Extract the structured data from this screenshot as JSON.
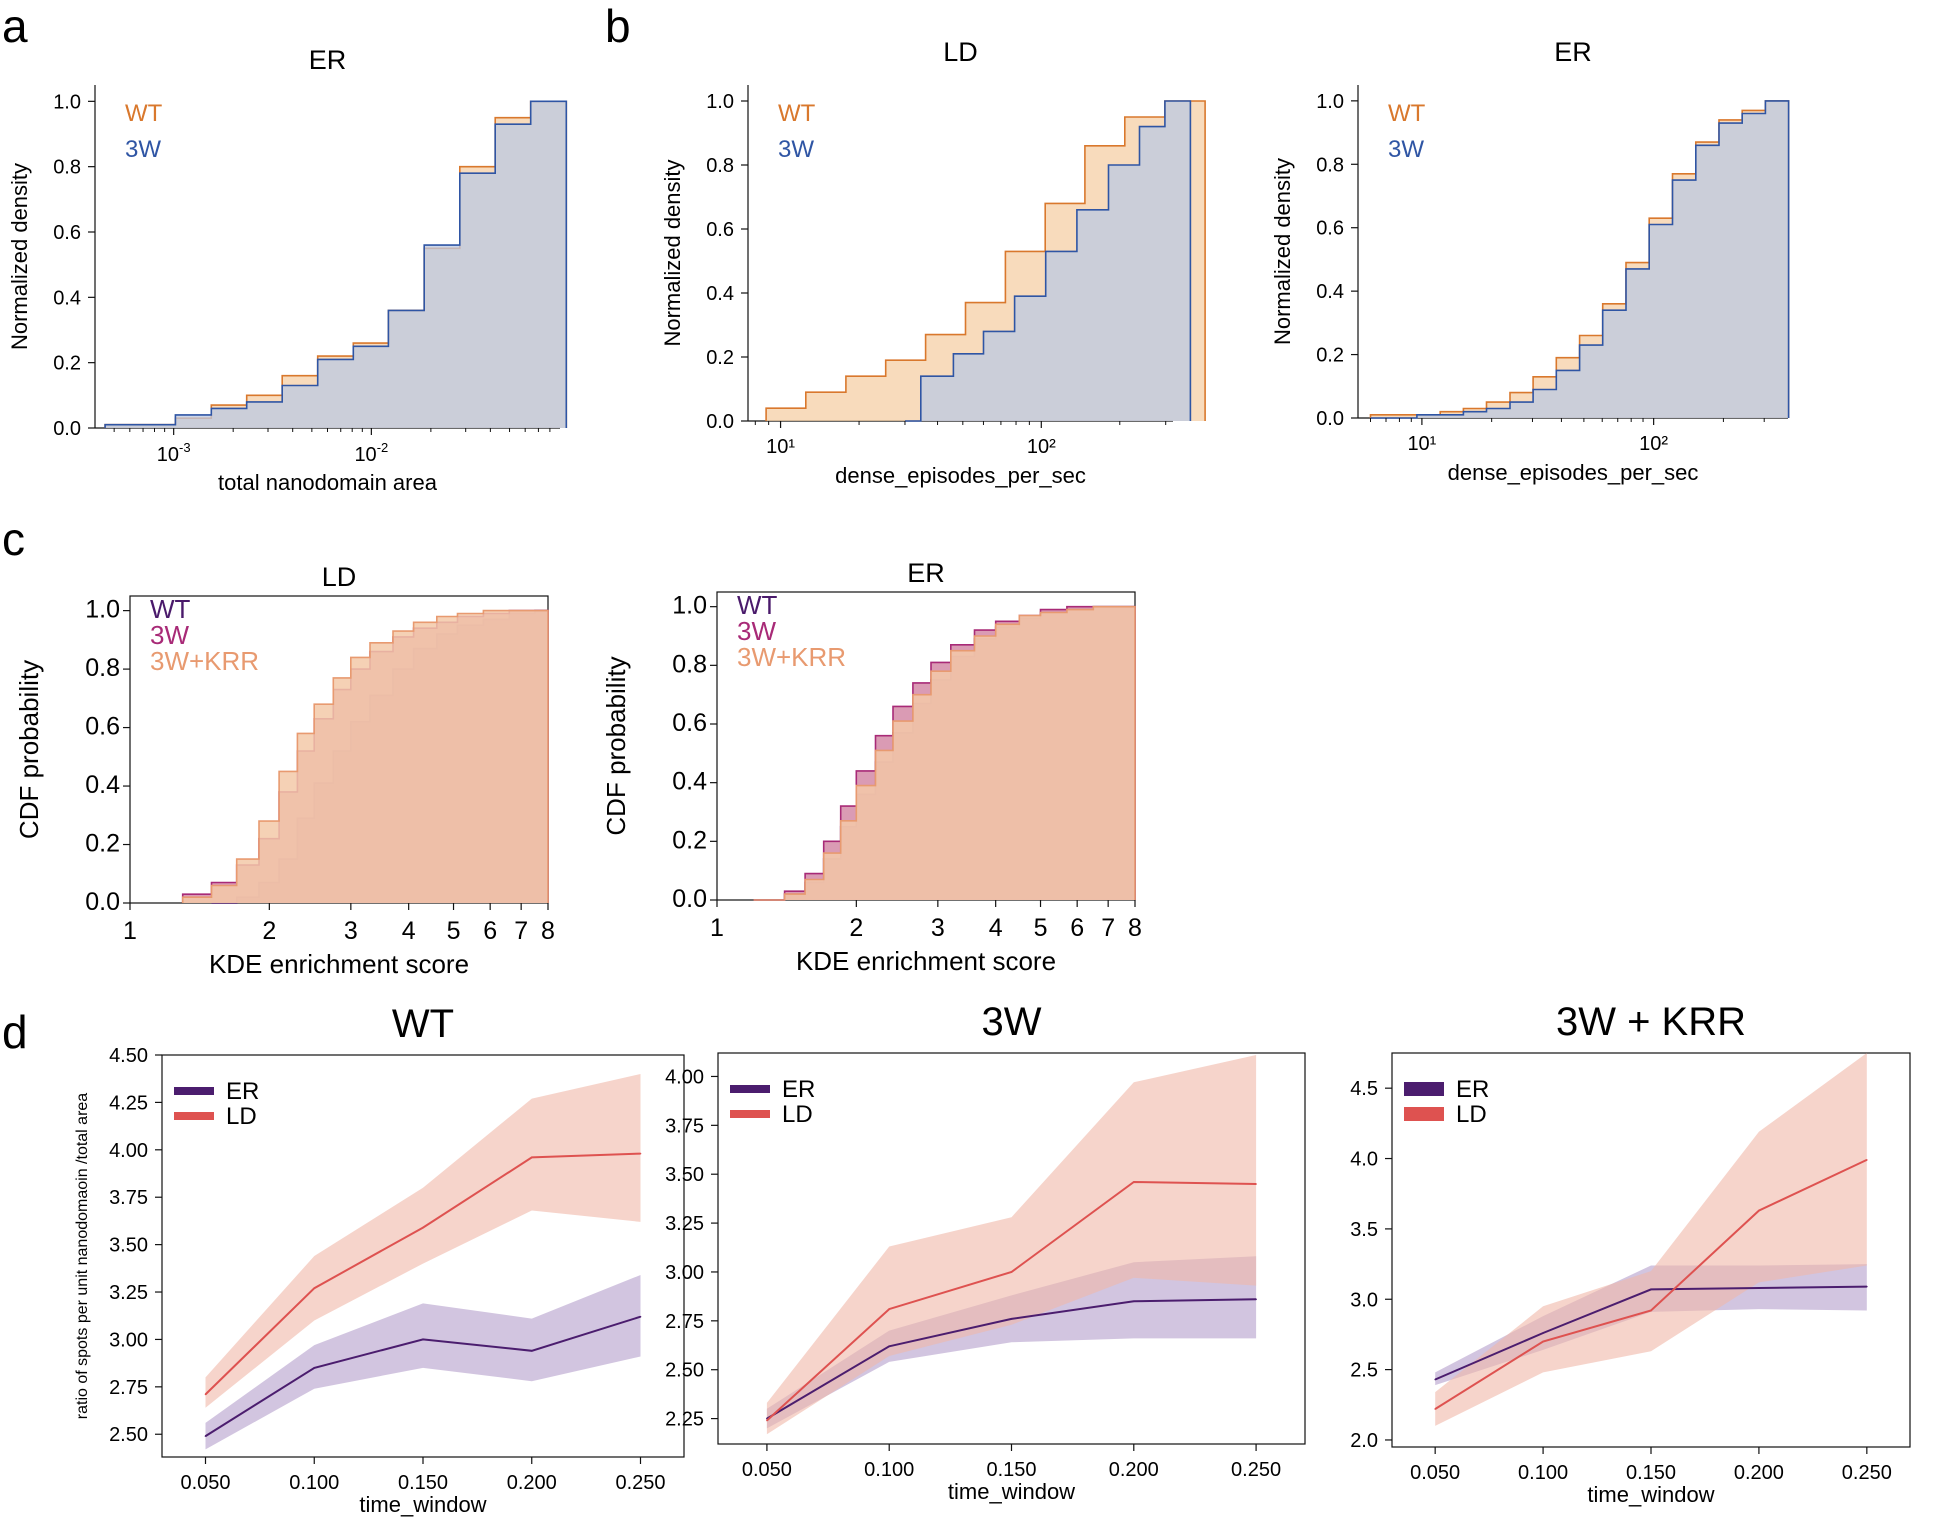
{
  "panel_letters": [
    "a",
    "b",
    "c",
    "d"
  ],
  "chart_data": [
    {
      "panel": "a",
      "type": "area",
      "title": "ER",
      "xlabel": "total nanodomain area",
      "ylabel": "Normalized density",
      "xscale": "log",
      "xlim": [
        0.0004,
        0.09
      ],
      "ylim": [
        0,
        1.05
      ],
      "xticks": [
        0.001,
        0.01
      ],
      "xticklabels": [
        "10-3",
        "10-2"
      ],
      "yticks": [
        "0.0",
        "0.2",
        "0.4",
        "0.6",
        "0.8",
        "1.0"
      ],
      "legend": "top-left",
      "grid": false,
      "series": [
        {
          "name": "WT",
          "color": "#d9782d",
          "fill": "#f5cfa6",
          "x": [
            0.00045,
            0.00068,
            0.00102,
            0.00155,
            0.00234,
            0.00354,
            0.00535,
            0.0081,
            0.0122,
            0.0185,
            0.028,
            0.0423,
            0.064
          ],
          "values": [
            0.01,
            0.01,
            0.03,
            0.07,
            0.1,
            0.16,
            0.22,
            0.26,
            0.36,
            0.55,
            0.8,
            0.95,
            1.0
          ]
        },
        {
          "name": "3W",
          "color": "#2f55a4",
          "fill": "#bcc9e3",
          "x": [
            0.00045,
            0.00068,
            0.00102,
            0.00155,
            0.00234,
            0.00354,
            0.00535,
            0.0081,
            0.0122,
            0.0185,
            0.028,
            0.0423,
            0.064
          ],
          "values": [
            0.01,
            0.01,
            0.04,
            0.06,
            0.08,
            0.13,
            0.21,
            0.25,
            0.36,
            0.56,
            0.78,
            0.93,
            1.0
          ]
        }
      ]
    },
    {
      "panel": "b-left",
      "type": "area",
      "title": "LD",
      "xlabel": "dense_episodes_per_sec",
      "ylabel": "Normalized density",
      "xscale": "log",
      "xlim": [
        7.5,
        320
      ],
      "ylim": [
        0,
        1.05
      ],
      "xticks": [
        10,
        100
      ],
      "xticklabels": [
        "10¹",
        "10²"
      ],
      "yticks": [
        "0.0",
        "0.2",
        "0.4",
        "0.6",
        "0.8",
        "1.0"
      ],
      "legend": "top-left",
      "grid": false,
      "series": [
        {
          "name": "WT",
          "color": "#d9782d",
          "fill": "#f5cfa6",
          "x": [
            8.8,
            12.5,
            17.8,
            25.3,
            36.0,
            51.2,
            72.8,
            103.5,
            147,
            209,
            298
          ],
          "values": [
            0.04,
            0.09,
            0.14,
            0.19,
            0.27,
            0.37,
            0.53,
            0.68,
            0.86,
            0.95,
            1.0
          ]
        },
        {
          "name": "3W",
          "color": "#2f55a4",
          "fill": "#bcc9e3",
          "x": [
            30.0,
            34.5,
            46.0,
            60.0,
            79.0,
            104,
            137,
            181,
            238,
            298
          ],
          "values": [
            0.0,
            0.14,
            0.21,
            0.28,
            0.39,
            0.53,
            0.66,
            0.8,
            0.92,
            1.0
          ]
        }
      ]
    },
    {
      "panel": "b-right",
      "type": "area",
      "title": "ER",
      "xlabel": "dense_episodes_per_sec",
      "ylabel": "Normalized density",
      "xscale": "log",
      "xlim": [
        5.3,
        380
      ],
      "ylim": [
        0,
        1.05
      ],
      "xticks": [
        10,
        100
      ],
      "xticklabels": [
        "10¹",
        "10²"
      ],
      "yticks": [
        "0.0",
        "0.2",
        "0.4",
        "0.6",
        "0.8",
        "1.0"
      ],
      "legend": "top-left",
      "grid": false,
      "series": [
        {
          "name": "WT",
          "color": "#d9782d",
          "fill": "#f5cfa6",
          "x": [
            6.0,
            7.56,
            9.52,
            12.0,
            15.1,
            19.0,
            24.0,
            30.2,
            38.0,
            47.9,
            60.3,
            76.0,
            95.7,
            120.6,
            152,
            191.4,
            241,
            303.6
          ],
          "values": [
            0.01,
            0.01,
            0.01,
            0.02,
            0.03,
            0.05,
            0.08,
            0.13,
            0.19,
            0.26,
            0.36,
            0.49,
            0.63,
            0.77,
            0.87,
            0.94,
            0.97,
            1.0
          ]
        },
        {
          "name": "3W",
          "color": "#2f55a4",
          "fill": "#bcc9e3",
          "x": [
            6.0,
            7.56,
            9.52,
            12.0,
            15.1,
            19.0,
            24.0,
            30.2,
            38.0,
            47.9,
            60.3,
            76.0,
            95.7,
            120.6,
            152,
            191.4,
            241,
            303.6
          ],
          "values": [
            0.0,
            0.0,
            0.01,
            0.01,
            0.02,
            0.03,
            0.05,
            0.09,
            0.15,
            0.23,
            0.34,
            0.47,
            0.61,
            0.75,
            0.86,
            0.93,
            0.96,
            1.0
          ]
        }
      ]
    },
    {
      "panel": "c-left",
      "type": "area",
      "title": "LD",
      "xlabel": "KDE enrichment score",
      "ylabel": "CDF probability",
      "xscale": "log",
      "xlim": [
        1,
        8
      ],
      "ylim": [
        0,
        1.05
      ],
      "xticks": [
        1,
        2,
        3,
        4,
        5,
        6,
        7,
        8
      ],
      "xticklabels": [
        "1",
        "2",
        "3",
        "4",
        "5",
        "6",
        "7",
        "8"
      ],
      "yticks": [
        "0.0",
        "0.2",
        "0.4",
        "0.6",
        "0.8",
        "1.0"
      ],
      "legend": "top-left",
      "grid": false,
      "series": [
        {
          "name": "WT",
          "color": "#4a1a6b",
          "fill": "#9c6d93",
          "x": [
            1.5,
            1.7,
            1.9,
            2.1,
            2.3,
            2.5,
            2.75,
            3.0,
            3.3,
            3.7,
            4.1,
            4.6,
            5.1,
            5.8,
            6.6,
            7.5
          ],
          "values": [
            0.0,
            0.02,
            0.07,
            0.15,
            0.29,
            0.41,
            0.52,
            0.62,
            0.71,
            0.8,
            0.87,
            0.92,
            0.95,
            0.97,
            0.99,
            1.0
          ]
        },
        {
          "name": "3W",
          "color": "#a82a77",
          "fill": "#d48aa7",
          "x": [
            1.3,
            1.5,
            1.7,
            1.9,
            2.1,
            2.3,
            2.5,
            2.75,
            3.0,
            3.3,
            3.7,
            4.1,
            4.6,
            5.1,
            5.8,
            6.6,
            7.5
          ],
          "values": [
            0.03,
            0.07,
            0.13,
            0.22,
            0.38,
            0.52,
            0.63,
            0.73,
            0.8,
            0.86,
            0.91,
            0.94,
            0.96,
            0.98,
            0.99,
            1.0,
            1.0
          ]
        },
        {
          "name": "3W+KRR",
          "color": "#e89a70",
          "fill": "#f3c9a8",
          "x": [
            1.3,
            1.5,
            1.7,
            1.9,
            2.1,
            2.3,
            2.5,
            2.75,
            3.0,
            3.3,
            3.7,
            4.1,
            4.6,
            5.1,
            5.8,
            6.6,
            7.5
          ],
          "values": [
            0.02,
            0.06,
            0.15,
            0.28,
            0.45,
            0.58,
            0.68,
            0.77,
            0.84,
            0.89,
            0.93,
            0.96,
            0.98,
            0.99,
            1.0,
            1.0,
            1.0
          ]
        }
      ]
    },
    {
      "panel": "c-right",
      "type": "area",
      "title": "ER",
      "xlabel": "KDE enrichment score",
      "ylabel": "CDF probability",
      "xscale": "log",
      "xlim": [
        1,
        8
      ],
      "ylim": [
        0,
        1.05
      ],
      "xticks": [
        1,
        2,
        3,
        4,
        5,
        6,
        7,
        8
      ],
      "xticklabels": [
        "1",
        "2",
        "3",
        "4",
        "5",
        "6",
        "7",
        "8"
      ],
      "yticks": [
        "0.0",
        "0.2",
        "0.4",
        "0.6",
        "0.8",
        "1.0"
      ],
      "legend": "top-left",
      "grid": false,
      "series": [
        {
          "name": "WT",
          "color": "#4a1a6b",
          "fill": "#9c6d93",
          "x": [
            1.2,
            1.4,
            1.55,
            1.7,
            1.85,
            2.0,
            2.2,
            2.4,
            2.65,
            2.9,
            3.2,
            3.6,
            4.0,
            4.5,
            5.0,
            5.7,
            6.5,
            7.4
          ],
          "values": [
            0.0,
            0.02,
            0.06,
            0.14,
            0.25,
            0.36,
            0.47,
            0.57,
            0.67,
            0.75,
            0.83,
            0.89,
            0.93,
            0.96,
            0.98,
            0.99,
            1.0,
            1.0
          ]
        },
        {
          "name": "3W",
          "color": "#a82a77",
          "fill": "#d48aa7",
          "x": [
            1.2,
            1.4,
            1.55,
            1.7,
            1.85,
            2.0,
            2.2,
            2.4,
            2.65,
            2.9,
            3.2,
            3.6,
            4.0,
            4.5,
            5.0,
            5.7,
            6.5,
            7.4
          ],
          "values": [
            0.0,
            0.03,
            0.09,
            0.2,
            0.32,
            0.44,
            0.56,
            0.66,
            0.74,
            0.81,
            0.87,
            0.92,
            0.95,
            0.97,
            0.99,
            1.0,
            1.0,
            1.0
          ]
        },
        {
          "name": "3W+KRR",
          "color": "#e89a70",
          "fill": "#f3c9a8",
          "x": [
            1.2,
            1.4,
            1.55,
            1.7,
            1.85,
            2.0,
            2.2,
            2.4,
            2.65,
            2.9,
            3.2,
            3.6,
            4.0,
            4.5,
            5.0,
            5.7,
            6.5,
            7.4
          ],
          "values": [
            0.0,
            0.02,
            0.07,
            0.16,
            0.27,
            0.39,
            0.51,
            0.61,
            0.7,
            0.78,
            0.85,
            0.9,
            0.94,
            0.97,
            0.98,
            0.99,
            1.0,
            1.0
          ]
        }
      ]
    },
    {
      "panel": "d-left",
      "type": "line",
      "title": "WT",
      "xlabel": "time_window",
      "ylabel": "ratio of spots per unit nanodomaoin /total area",
      "xlim": [
        0.03,
        0.27
      ],
      "ylim": [
        2.38,
        4.5
      ],
      "xticks": [
        0.05,
        0.1,
        0.15,
        0.2,
        0.25
      ],
      "xticklabels": [
        "0.050",
        "0.100",
        "0.150",
        "0.200",
        "0.250"
      ],
      "yticks": [
        2.5,
        2.75,
        3.0,
        3.25,
        3.5,
        3.75,
        4.0,
        4.25,
        4.5
      ],
      "yticklabels": [
        "2.50",
        "2.75",
        "3.00",
        "3.25",
        "3.50",
        "3.75",
        "4.00",
        "4.25",
        "4.50"
      ],
      "legend": "top-left",
      "grid": false,
      "x": [
        0.05,
        0.1,
        0.15,
        0.2,
        0.25
      ],
      "series": [
        {
          "name": "ER",
          "color": "#4b1d6e",
          "fill": "#b49fcc",
          "values": [
            2.49,
            2.85,
            3.0,
            2.94,
            3.12
          ],
          "lower": [
            2.42,
            2.74,
            2.85,
            2.78,
            2.91
          ],
          "upper": [
            2.56,
            2.97,
            3.19,
            3.11,
            3.34
          ]
        },
        {
          "name": "LD",
          "color": "#de5250",
          "fill": "#f0b7a9",
          "values": [
            2.71,
            3.27,
            3.59,
            3.96,
            3.98
          ],
          "lower": [
            2.64,
            3.1,
            3.4,
            3.68,
            3.62
          ],
          "upper": [
            2.8,
            3.44,
            3.8,
            4.27,
            4.4
          ]
        }
      ]
    },
    {
      "panel": "d-middle",
      "type": "line",
      "title": "3W",
      "xlabel": "time_window",
      "ylabel": "",
      "xlim": [
        0.03,
        0.27
      ],
      "ylim": [
        2.12,
        4.12
      ],
      "xticks": [
        0.05,
        0.1,
        0.15,
        0.2,
        0.25
      ],
      "xticklabels": [
        "0.050",
        "0.100",
        "0.150",
        "0.200",
        "0.250"
      ],
      "yticks": [
        2.25,
        2.5,
        2.75,
        3.0,
        3.25,
        3.5,
        3.75,
        4.0
      ],
      "yticklabels": [
        "2.25",
        "2.50",
        "2.75",
        "3.00",
        "3.25",
        "3.50",
        "3.75",
        "4.00"
      ],
      "legend": "top-left",
      "grid": false,
      "x": [
        0.05,
        0.1,
        0.15,
        0.2,
        0.25
      ],
      "series": [
        {
          "name": "ER",
          "color": "#4b1d6e",
          "fill": "#b49fcc",
          "values": [
            2.25,
            2.62,
            2.76,
            2.85,
            2.86
          ],
          "lower": [
            2.2,
            2.54,
            2.64,
            2.66,
            2.66
          ],
          "upper": [
            2.3,
            2.7,
            2.88,
            3.05,
            3.08
          ]
        },
        {
          "name": "LD",
          "color": "#de5250",
          "fill": "#f0b7a9",
          "values": [
            2.24,
            2.81,
            3.0,
            3.46,
            3.45
          ],
          "lower": [
            2.17,
            2.57,
            2.73,
            2.97,
            2.93
          ],
          "upper": [
            2.33,
            3.13,
            3.28,
            3.97,
            4.11
          ]
        }
      ]
    },
    {
      "panel": "d-right",
      "type": "line",
      "title": "3W + KRR",
      "xlabel": "time_window",
      "ylabel": "",
      "xlim": [
        0.03,
        0.27
      ],
      "ylim": [
        1.95,
        4.75
      ],
      "xticks": [
        0.05,
        0.1,
        0.15,
        0.2,
        0.25
      ],
      "xticklabels": [
        "0.050",
        "0.100",
        "0.150",
        "0.200",
        "0.250"
      ],
      "yticks": [
        2.0,
        2.5,
        3.0,
        3.5,
        4.0,
        4.5
      ],
      "yticklabels": [
        "2.0",
        "2.5",
        "3.0",
        "3.5",
        "4.0",
        "4.5"
      ],
      "legend": "top-left",
      "grid": false,
      "x": [
        0.05,
        0.1,
        0.15,
        0.2,
        0.25
      ],
      "series": [
        {
          "name": "ER",
          "color": "#4b1d6e",
          "fill": "#b49fcc",
          "values": [
            2.43,
            2.76,
            3.07,
            3.08,
            3.09
          ],
          "lower": [
            2.39,
            2.64,
            2.91,
            2.93,
            2.92
          ],
          "upper": [
            2.48,
            2.88,
            3.24,
            3.24,
            3.25
          ]
        },
        {
          "name": "LD",
          "color": "#de5250",
          "fill": "#f0b7a9",
          "values": [
            2.22,
            2.7,
            2.92,
            3.63,
            3.99
          ],
          "lower": [
            2.1,
            2.48,
            2.63,
            3.12,
            3.24
          ],
          "upper": [
            2.34,
            2.95,
            3.2,
            4.19,
            4.75
          ]
        }
      ]
    }
  ]
}
